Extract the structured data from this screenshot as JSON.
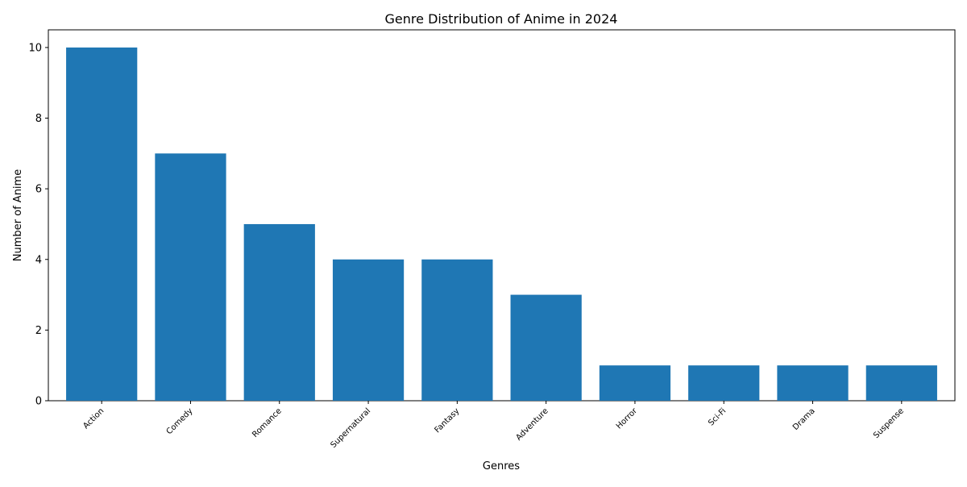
{
  "chart_data": {
    "type": "bar",
    "title": "Genre Distribution of Anime in 2024",
    "xlabel": "Genres",
    "ylabel": "Number of Anime",
    "categories": [
      "Action",
      "Comedy",
      "Romance",
      "Supernatural",
      "Fantasy",
      "Adventure",
      "Horror",
      "Sci-Fi",
      "Drama",
      "Suspense"
    ],
    "values": [
      10,
      7,
      5,
      4,
      4,
      3,
      1,
      1,
      1,
      1
    ],
    "ylim": [
      0,
      10.5
    ],
    "yticks": [
      0,
      2,
      4,
      6,
      8,
      10
    ],
    "bar_color": "#1f77b4",
    "grid": false,
    "legend": "none"
  }
}
